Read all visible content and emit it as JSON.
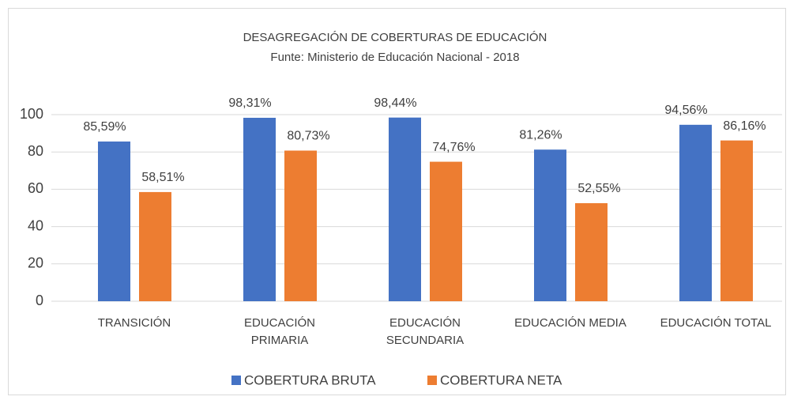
{
  "chart_data": {
    "type": "bar",
    "title": "DESAGREGACIÓN DE COBERTURAS DE EDUCACIÓN",
    "subtitle": "Funte: Ministerio de Educación Nacional - 2018",
    "categories": [
      "TRANSICIÓN",
      "EDUCACIÓN PRIMARIA",
      "EDUCACIÓN SECUNDARIA",
      "EDUCACIÓN MEDIA",
      "EDUCACIÓN TOTAL"
    ],
    "series": [
      {
        "name": "COBERTURA BRUTA",
        "color": "#4472c4",
        "values": [
          85.59,
          98.31,
          98.44,
          81.26,
          94.56
        ],
        "value_labels": [
          "85,59%",
          "98,31%",
          "98,44%",
          "81,26%",
          "94,56%"
        ]
      },
      {
        "name": "COBERTURA NETA",
        "color": "#ed7d31",
        "values": [
          58.51,
          80.73,
          74.76,
          52.55,
          86.16
        ],
        "value_labels": [
          "58,51%",
          "80,73%",
          "74,76%",
          "52,55%",
          "86,16%"
        ]
      }
    ],
    "ylim": [
      0,
      100
    ],
    "yticks": [
      0,
      20,
      40,
      60,
      80,
      100
    ],
    "grid": true,
    "legend": "bottom"
  }
}
